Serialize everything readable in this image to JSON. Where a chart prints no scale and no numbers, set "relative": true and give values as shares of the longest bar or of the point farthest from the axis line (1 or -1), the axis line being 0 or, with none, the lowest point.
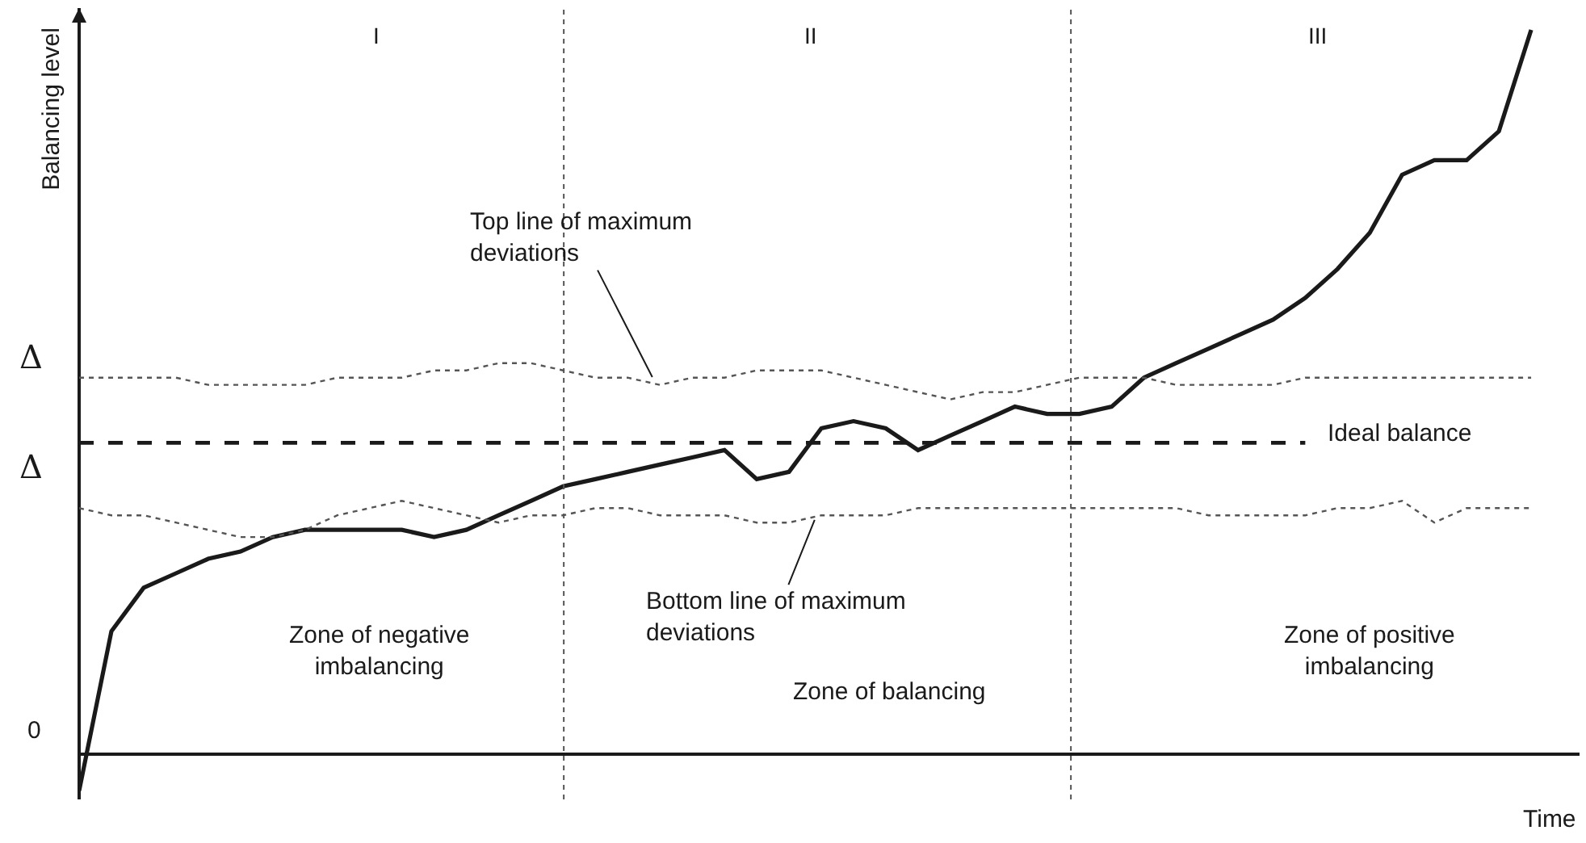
{
  "chart_data": {
    "type": "line",
    "relative": true,
    "xlabel": "Time",
    "ylabel": "Balancing level",
    "tick_labels": false,
    "categories": [
      null,
      null,
      null,
      null,
      null,
      null,
      null,
      null,
      null,
      null,
      null,
      null,
      null,
      null,
      null,
      null,
      null,
      null,
      null,
      null,
      null,
      null,
      null,
      null,
      null,
      null,
      null,
      null,
      null,
      null,
      null,
      null,
      null,
      null,
      null,
      null,
      null,
      null,
      null,
      null,
      null,
      null,
      null,
      null,
      null,
      null
    ],
    "series": [
      {
        "color": "#1a1a1a",
        "line_style": "solid",
        "values": [
          -0.05,
          0.17,
          0.23,
          0.25,
          0.27,
          0.28,
          0.3,
          0.31,
          0.31,
          0.31,
          0.31,
          0.3,
          0.31,
          0.33,
          0.35,
          0.37,
          0.38,
          0.39,
          0.4,
          0.41,
          0.42,
          0.38,
          0.39,
          0.45,
          0.46,
          0.45,
          0.42,
          0.44,
          0.46,
          0.48,
          0.47,
          0.47,
          0.48,
          0.52,
          0.54,
          0.56,
          0.58,
          0.6,
          0.63,
          0.67,
          0.72,
          0.8,
          0.82,
          0.82,
          0.86,
          1
        ]
      },
      {
        "color": "#555555",
        "line_style": "dotted",
        "values": [
          0.52,
          0.52,
          0.52,
          0.52,
          0.51,
          0.51,
          0.51,
          0.51,
          0.52,
          0.52,
          0.52,
          0.53,
          0.53,
          0.54,
          0.54,
          0.53,
          0.52,
          0.52,
          0.51,
          0.52,
          0.52,
          0.53,
          0.53,
          0.53,
          0.52,
          0.51,
          0.5,
          0.49,
          0.5,
          0.5,
          0.51,
          0.52,
          0.52,
          0.52,
          0.51,
          0.51,
          0.51,
          0.51,
          0.52,
          0.52,
          0.52,
          0.52,
          0.52,
          0.52,
          0.52,
          0.52
        ]
      },
      {
        "color": "#555555",
        "line_style": "dotted",
        "values": [
          0.34,
          0.33,
          0.33,
          0.32,
          0.31,
          0.3,
          0.3,
          0.31,
          0.33,
          0.34,
          0.35,
          0.34,
          0.33,
          0.32,
          0.33,
          0.33,
          0.34,
          0.34,
          0.33,
          0.33,
          0.33,
          0.32,
          0.32,
          0.33,
          0.33,
          0.33,
          0.34,
          0.34,
          0.34,
          0.34,
          0.34,
          0.34,
          0.34,
          0.34,
          0.34,
          0.33,
          0.33,
          0.33,
          0.33,
          0.34,
          0.34,
          0.35,
          0.32,
          0.34,
          0.34,
          0.34
        ]
      },
      {
        "color": "#1a1a1a",
        "line_style": "dashed",
        "values": [
          0.43,
          0.43,
          0.43,
          0.43,
          0.43,
          0.43,
          0.43,
          0.43,
          0.43,
          0.43,
          0.43,
          0.43,
          0.43,
          0.43,
          0.43,
          0.43,
          0.43,
          0.43,
          0.43,
          0.43,
          0.43,
          0.43,
          0.43,
          0.43,
          0.43,
          0.43,
          0.43,
          0.43,
          0.43,
          0.43,
          0.43,
          0.43,
          0.43,
          0.43,
          0.43,
          0.43,
          0.43,
          0.43,
          0.43,
          null,
          null,
          null,
          null,
          null,
          null,
          null
        ]
      }
    ],
    "annotations": [
      "I",
      "II",
      "III",
      "Top line of maximum\ndeviations",
      "Bottom line of maximum\ndeviations",
      "Ideal balance",
      "Zone of negative\nimbalancing",
      "Zone of balancing",
      "Zone of positive\nimbalancing",
      "Δ",
      "Δ",
      "0"
    ]
  }
}
